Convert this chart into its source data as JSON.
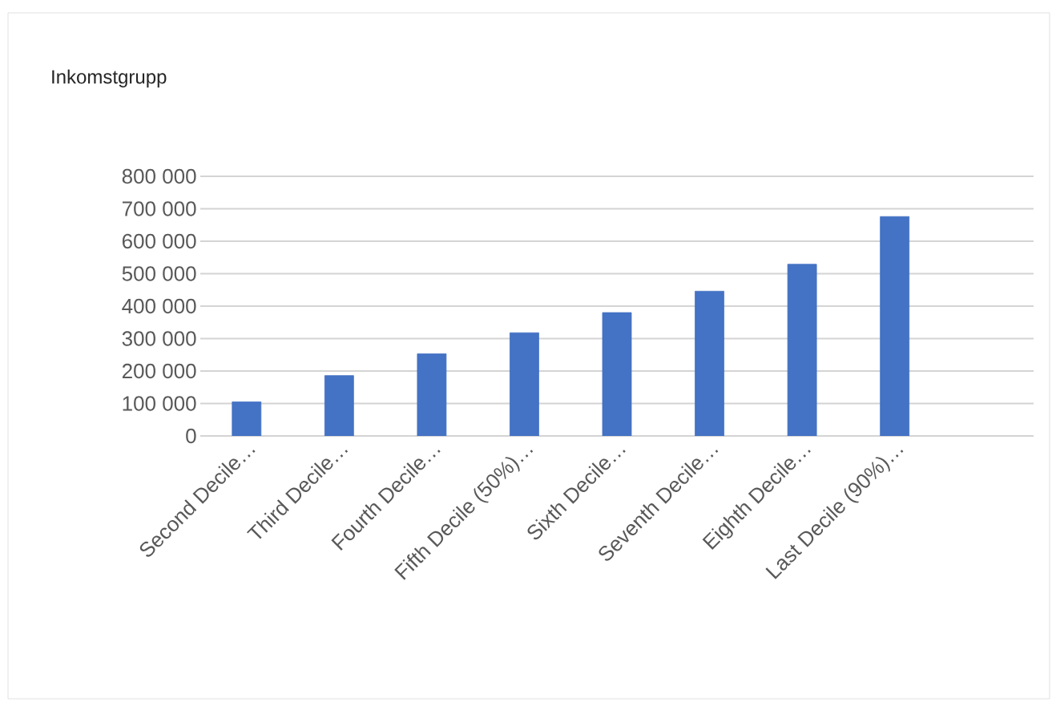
{
  "chart_data": {
    "type": "bar",
    "title": "Inkomstgrupp",
    "categories": [
      "Second Decile…",
      "Third Decile…",
      "Fourth Decile…",
      "Fifth Decile (50%)…",
      "Sixth Decile…",
      "Seventh Decile…",
      "Eighth Decile…",
      "Last Decile (90%)…",
      null
    ],
    "values": [
      105000,
      186000,
      253000,
      318000,
      380000,
      446000,
      529000,
      676000,
      null
    ],
    "color": "#4472c4",
    "ylim": [
      0,
      800000
    ],
    "yticks": [
      {
        "value": 0,
        "label": "0"
      },
      {
        "value": 100000,
        "label": "100 000"
      },
      {
        "value": 200000,
        "label": "200 000"
      },
      {
        "value": 300000,
        "label": "300 000"
      },
      {
        "value": 400000,
        "label": "400 000"
      },
      {
        "value": 500000,
        "label": "500 000"
      },
      {
        "value": 600000,
        "label": "600 000"
      },
      {
        "value": 700000,
        "label": "700 000"
      },
      {
        "value": 800000,
        "label": "800 000"
      }
    ],
    "grid": "y"
  }
}
